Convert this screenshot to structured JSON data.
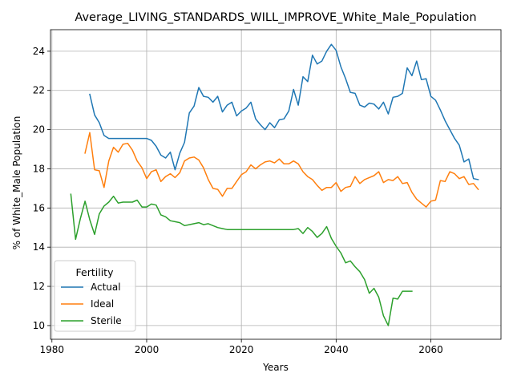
{
  "chart_data": {
    "type": "line",
    "title": "Average_LIVING_STANDARDS_WILL_IMPROVE_White_Male_Population",
    "xlabel": "Years",
    "ylabel": "% of White_Male Population",
    "xlim": [
      1979.7,
      2074.8
    ],
    "ylim": [
      9.3,
      25.1
    ],
    "xticks": [
      1980,
      2000,
      2020,
      2040,
      2060
    ],
    "yticks": [
      10,
      12,
      14,
      16,
      18,
      20,
      22,
      24
    ],
    "grid": true,
    "legend": {
      "title": "Fertility",
      "location": "lower-left"
    },
    "series": [
      {
        "name": "Actual",
        "color": "#1f77b4",
        "x": [
          1988,
          1989,
          1990,
          1991,
          1992,
          1993,
          1994,
          1995,
          1996,
          1997,
          1998,
          1999,
          2000,
          2001,
          2002,
          2003,
          2004,
          2005,
          2006,
          2007,
          2008,
          2009,
          2010,
          2011,
          2012,
          2013,
          2014,
          2015,
          2016,
          2017,
          2018,
          2019,
          2020,
          2021,
          2022,
          2023,
          2024,
          2025,
          2026,
          2027,
          2028,
          2029,
          2030,
          2031,
          2032,
          2033,
          2034,
          2035,
          2036,
          2037,
          2038,
          2039,
          2040,
          2041,
          2042,
          2043,
          2044,
          2045,
          2046,
          2047,
          2048,
          2049,
          2050,
          2051,
          2052,
          2053,
          2054,
          2055,
          2056,
          2057,
          2058,
          2059,
          2060,
          2061,
          2062,
          2063,
          2064,
          2065,
          2066,
          2067,
          2068,
          2069,
          2070
        ],
        "y": [
          21.8,
          20.75,
          20.35,
          19.7,
          19.55,
          19.55,
          19.55,
          19.55,
          19.55,
          19.55,
          19.55,
          19.55,
          19.55,
          19.45,
          19.15,
          18.7,
          18.55,
          18.85,
          17.95,
          18.8,
          19.35,
          20.85,
          21.2,
          22.15,
          21.7,
          21.65,
          21.4,
          21.7,
          20.9,
          21.25,
          21.4,
          20.7,
          20.95,
          21.1,
          21.4,
          20.55,
          20.25,
          20.0,
          20.35,
          20.1,
          20.5,
          20.55,
          20.95,
          22.05,
          21.25,
          22.7,
          22.45,
          23.8,
          23.35,
          23.5,
          24.0,
          24.35,
          24.05,
          23.2,
          22.6,
          21.9,
          21.85,
          21.25,
          21.15,
          21.35,
          21.3,
          21.05,
          21.4,
          20.8,
          21.65,
          21.7,
          21.85,
          23.15,
          22.75,
          23.5,
          22.55,
          22.6,
          21.7,
          21.5,
          21.0,
          20.45,
          20.0,
          19.55,
          19.2,
          18.35,
          18.5,
          17.5,
          17.45
        ]
      },
      {
        "name": "Ideal",
        "color": "#ff7f0e",
        "x": [
          1987,
          1988,
          1989,
          1990,
          1991,
          1992,
          1993,
          1994,
          1995,
          1996,
          1997,
          1998,
          1999,
          2000,
          2001,
          2002,
          2003,
          2004,
          2005,
          2006,
          2007,
          2008,
          2009,
          2010,
          2011,
          2012,
          2013,
          2014,
          2015,
          2016,
          2017,
          2018,
          2019,
          2020,
          2021,
          2022,
          2023,
          2024,
          2025,
          2026,
          2027,
          2028,
          2029,
          2030,
          2031,
          2032,
          2033,
          2034,
          2035,
          2036,
          2037,
          2038,
          2039,
          2040,
          2041,
          2042,
          2043,
          2044,
          2045,
          2046,
          2047,
          2048,
          2049,
          2050,
          2051,
          2052,
          2053,
          2054,
          2055,
          2056,
          2057,
          2058,
          2059,
          2060,
          2061,
          2062,
          2063,
          2064,
          2065,
          2066,
          2067,
          2068,
          2069,
          2070
        ],
        "y": [
          18.8,
          19.85,
          17.95,
          17.9,
          17.05,
          18.4,
          19.1,
          18.85,
          19.25,
          19.3,
          18.95,
          18.4,
          18.05,
          17.5,
          17.85,
          17.95,
          17.35,
          17.6,
          17.75,
          17.55,
          17.8,
          18.4,
          18.55,
          18.6,
          18.45,
          18.05,
          17.45,
          17.0,
          16.95,
          16.6,
          17.0,
          17.0,
          17.35,
          17.7,
          17.85,
          18.2,
          18.0,
          18.2,
          18.35,
          18.4,
          18.3,
          18.5,
          18.25,
          18.25,
          18.4,
          18.25,
          17.85,
          17.6,
          17.45,
          17.15,
          16.9,
          17.05,
          17.05,
          17.3,
          16.85,
          17.05,
          17.1,
          17.6,
          17.25,
          17.45,
          17.55,
          17.65,
          17.85,
          17.3,
          17.45,
          17.4,
          17.6,
          17.25,
          17.3,
          16.8,
          16.45,
          16.25,
          16.05,
          16.35,
          16.4,
          17.4,
          17.35,
          17.85,
          17.75,
          17.5,
          17.6,
          17.2,
          17.25,
          16.95
        ]
      },
      {
        "name": "Sterile",
        "color": "#2ca02c",
        "x": [
          1984,
          1985,
          1986,
          1987,
          1988,
          1989,
          1990,
          1991,
          1992,
          1993,
          1994,
          1995,
          1996,
          1997,
          1998,
          1999,
          2000,
          2001,
          2002,
          2003,
          2004,
          2005,
          2006,
          2007,
          2008,
          2009,
          2010,
          2011,
          2012,
          2013,
          2014,
          2015,
          2016,
          2017,
          2018,
          2019,
          2020,
          2021,
          2022,
          2023,
          2024,
          2025,
          2026,
          2027,
          2028,
          2029,
          2030,
          2031,
          2032,
          2033,
          2034,
          2035,
          2036,
          2037,
          2038,
          2039,
          2040,
          2041,
          2042,
          2043,
          2044,
          2045,
          2046,
          2047,
          2048,
          2049,
          2050,
          2051,
          2052,
          2053,
          2054,
          2055,
          2056
        ],
        "y": [
          16.7,
          14.4,
          15.45,
          16.35,
          15.4,
          14.65,
          15.7,
          16.1,
          16.3,
          16.6,
          16.25,
          16.3,
          16.3,
          16.3,
          16.4,
          16.05,
          16.05,
          16.2,
          16.15,
          15.65,
          15.55,
          15.35,
          15.3,
          15.25,
          15.1,
          15.15,
          15.2,
          15.25,
          15.15,
          15.2,
          15.1,
          15.0,
          14.95,
          14.9,
          14.9,
          14.9,
          14.9,
          14.9,
          14.9,
          14.9,
          14.9,
          14.9,
          14.9,
          14.9,
          14.9,
          14.9,
          14.9,
          14.9,
          14.95,
          14.7,
          15.0,
          14.8,
          14.5,
          14.7,
          15.05,
          14.45,
          14.05,
          13.7,
          13.2,
          13.3,
          13.0,
          12.75,
          12.35,
          11.65,
          11.9,
          11.45,
          10.5,
          10.0,
          11.4,
          11.35,
          11.75,
          11.75,
          11.75
        ]
      }
    ]
  }
}
